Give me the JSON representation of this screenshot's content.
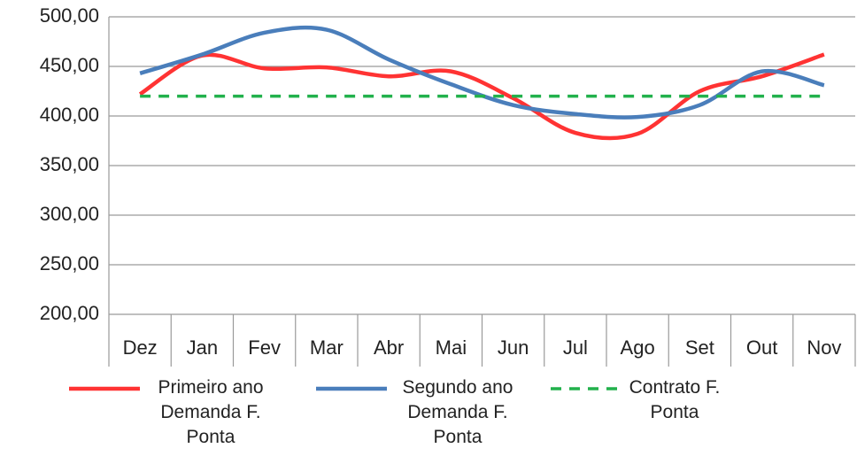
{
  "chart_data": {
    "type": "line",
    "categories": [
      "Dez",
      "Jan",
      "Fev",
      "Mar",
      "Abr",
      "Mai",
      "Jun",
      "Jul",
      "Ago",
      "Set",
      "Out",
      "Nov"
    ],
    "series": [
      {
        "name": "Primeiro ano Demanda F. Ponta",
        "color": "#ff3333",
        "dashed": false,
        "values": [
          422,
          461,
          448,
          449,
          440,
          445,
          418,
          383,
          382,
          425,
          440,
          462
        ]
      },
      {
        "name": "Segundo ano Demanda F. Ponta",
        "color": "#4a7ebb",
        "dashed": false,
        "values": [
          443,
          462,
          484,
          487,
          457,
          432,
          411,
          402,
          399,
          411,
          445,
          431
        ]
      },
      {
        "name": "Contrato F. Ponta",
        "color": "#22b14c",
        "dashed": true,
        "values": [
          420,
          420,
          420,
          420,
          420,
          420,
          420,
          420,
          420,
          420,
          420,
          420
        ]
      }
    ],
    "ylim": [
      200,
      500
    ],
    "yticks": [
      {
        "value": 200,
        "label": "200,00"
      },
      {
        "value": 250,
        "label": "250,00"
      },
      {
        "value": 300,
        "label": "300,00"
      },
      {
        "value": 350,
        "label": "350,00"
      },
      {
        "value": 400,
        "label": "400,00"
      },
      {
        "value": 450,
        "label": "450,00"
      },
      {
        "value": 500,
        "label": "500,00"
      }
    ],
    "grid": true
  }
}
